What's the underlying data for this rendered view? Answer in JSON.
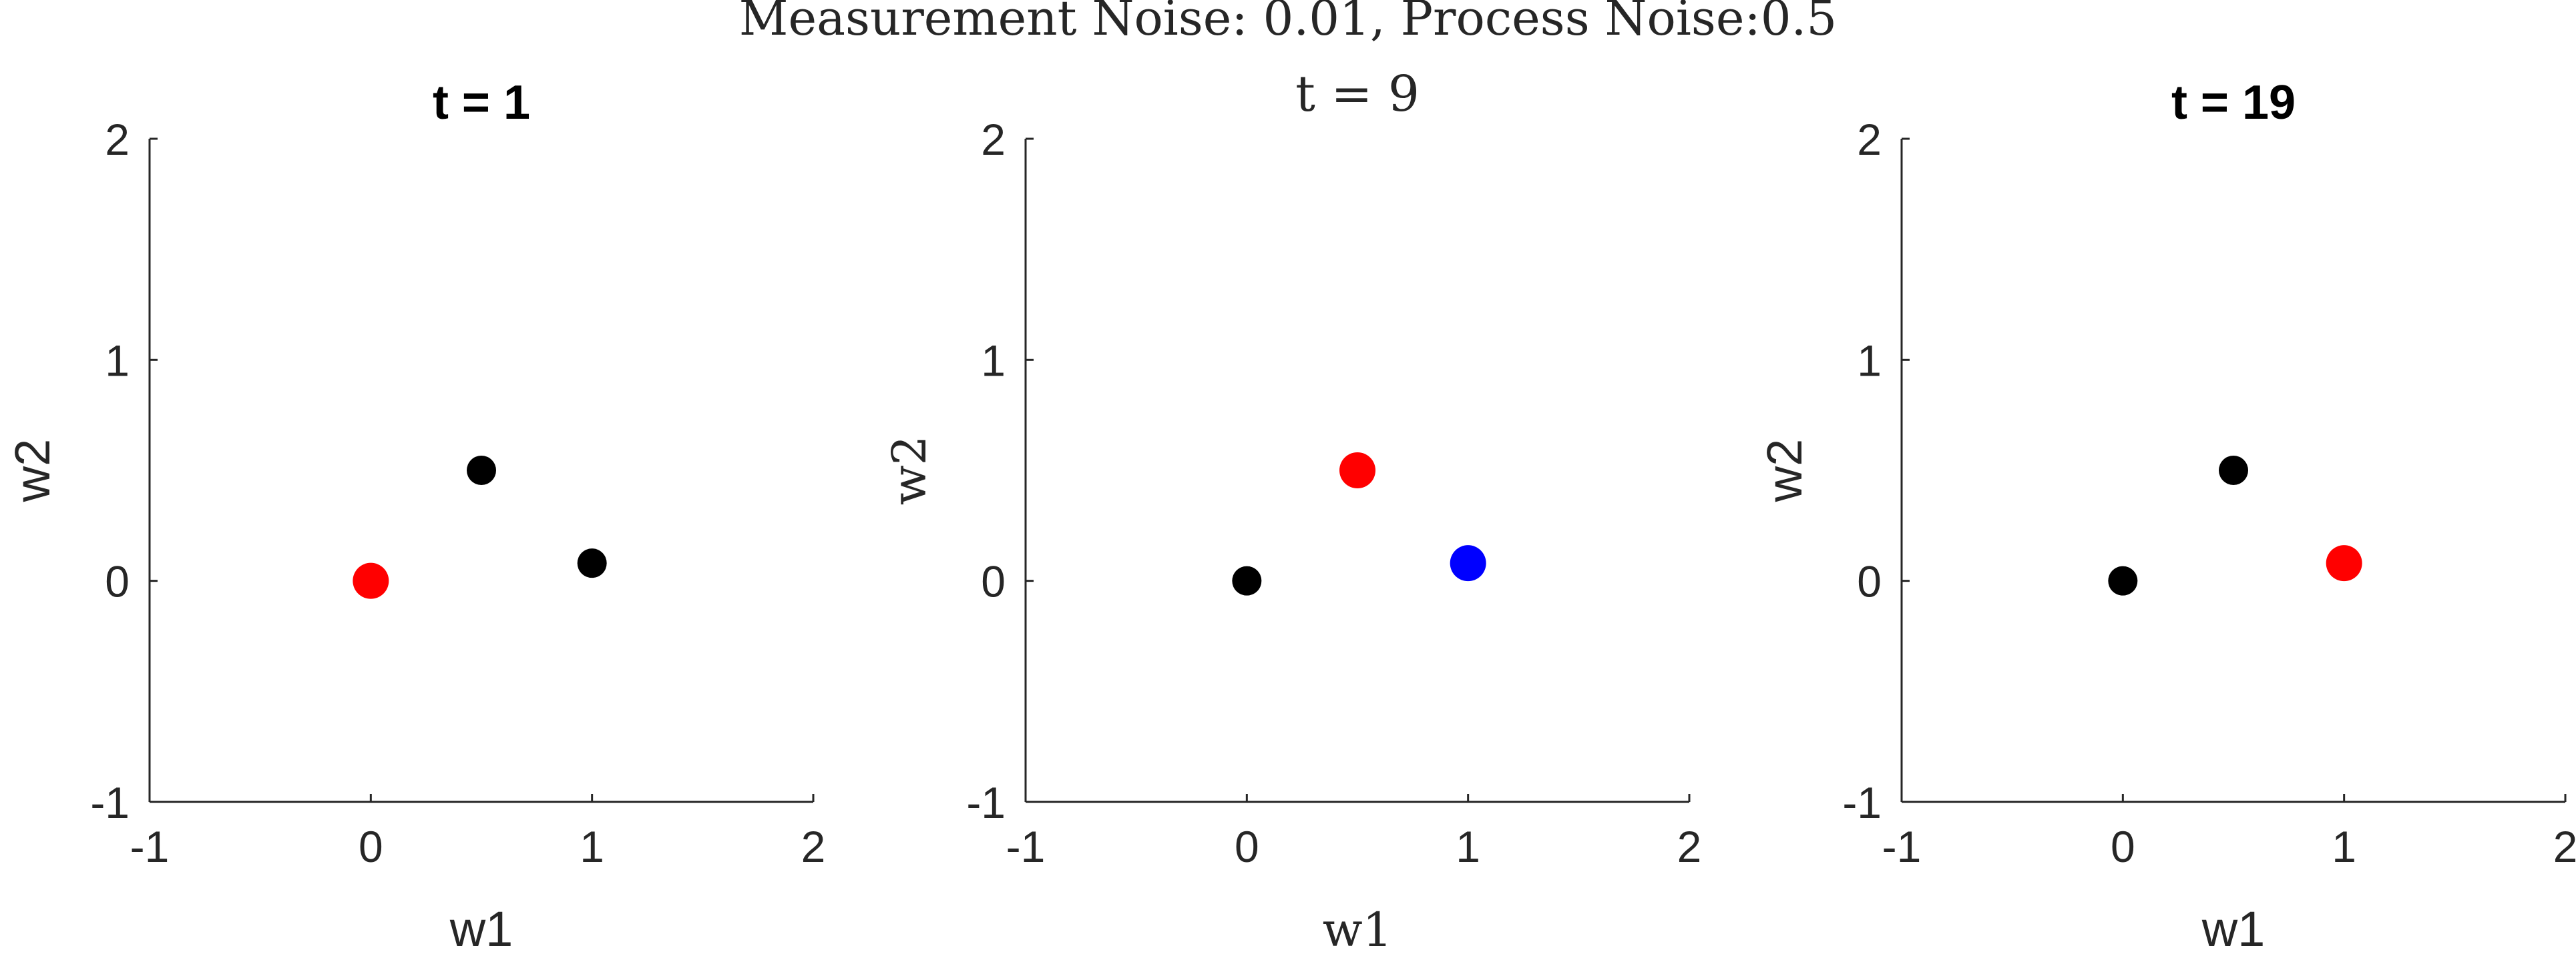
{
  "figure": {
    "suptitle": "Measurement Noise: 0.01, Process Noise:0.5"
  },
  "chart_data": [
    {
      "type": "scatter",
      "title": "t = 1",
      "title_style": "bold-sans",
      "xlabel": "w1",
      "ylabel": "w2",
      "label_style": "sans",
      "xlim": [
        -1,
        2
      ],
      "ylim": [
        -1,
        2
      ],
      "xticks": [
        "-1",
        "0",
        "1",
        "2"
      ],
      "yticks": [
        "-1",
        "0",
        "1",
        "2"
      ],
      "grid": false,
      "points": [
        {
          "x": 0,
          "y": 0,
          "color": "#ff0000"
        },
        {
          "x": 0.5,
          "y": 0.5,
          "color": "#000000"
        },
        {
          "x": 1,
          "y": 0.08,
          "color": "#000000"
        }
      ]
    },
    {
      "type": "scatter",
      "title": "t = 9",
      "title_style": "serif",
      "xlabel": "w1",
      "ylabel": "w2",
      "label_style": "serif",
      "xlim": [
        -1,
        2
      ],
      "ylim": [
        -1,
        2
      ],
      "xticks": [
        "-1",
        "0",
        "1",
        "2"
      ],
      "yticks": [
        "-1",
        "0",
        "1",
        "2"
      ],
      "grid": false,
      "points": [
        {
          "x": 0,
          "y": 0,
          "color": "#000000"
        },
        {
          "x": 0.5,
          "y": 0.5,
          "color": "#ff0000"
        },
        {
          "x": 1,
          "y": 0.08,
          "color": "#0000ff"
        }
      ]
    },
    {
      "type": "scatter",
      "title": "t = 19",
      "title_style": "bold-sans",
      "xlabel": "w1",
      "ylabel": "w2",
      "label_style": "sans",
      "xlim": [
        -1,
        2
      ],
      "ylim": [
        -1,
        2
      ],
      "xticks": [
        "-1",
        "0",
        "1",
        "2"
      ],
      "yticks": [
        "-1",
        "0",
        "1",
        "2"
      ],
      "grid": false,
      "points": [
        {
          "x": 0,
          "y": 0,
          "color": "#000000"
        },
        {
          "x": 0.5,
          "y": 0.5,
          "color": "#000000"
        },
        {
          "x": 1,
          "y": 0.08,
          "color": "#ff0000"
        }
      ]
    }
  ]
}
